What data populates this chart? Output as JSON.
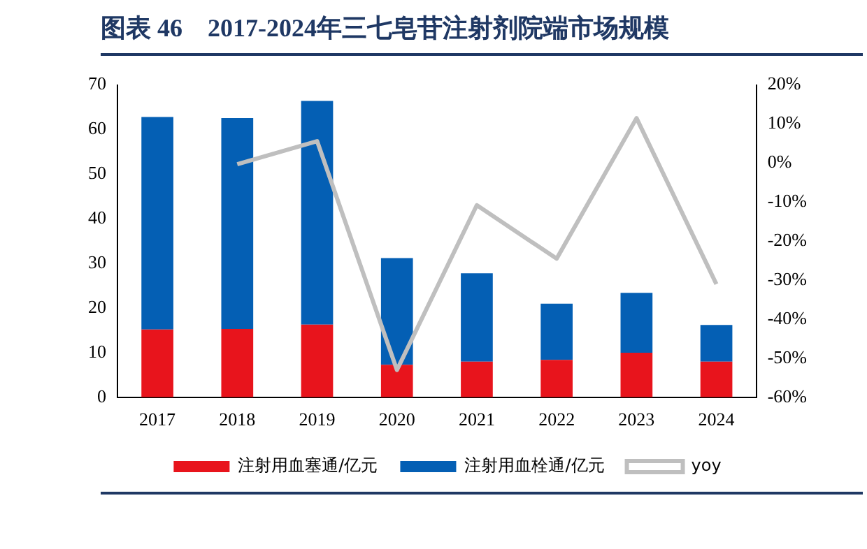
{
  "chart_data": {
    "type": "bar",
    "title": "图表 46　2017-2024年三七皂苷注射剂院端市场规模",
    "categories": [
      "2017",
      "2018",
      "2019",
      "2020",
      "2021",
      "2022",
      "2023",
      "2024"
    ],
    "stacked": true,
    "series": [
      {
        "name": "注射用血塞通/亿元",
        "color": "#e8141c",
        "values": [
          15.2,
          15.3,
          16.3,
          7.3,
          8.0,
          8.4,
          10.0,
          8.0
        ]
      },
      {
        "name": "注射用血栓通/亿元",
        "color": "#045fb4",
        "values": [
          47.6,
          47.3,
          50.1,
          23.9,
          19.8,
          12.6,
          13.4,
          8.2
        ]
      },
      {
        "name": "yoy",
        "type": "line",
        "axis": "y2",
        "color": "#bfbfbf",
        "values": [
          null,
          -0.3,
          5.6,
          -53,
          -10.8,
          -24.5,
          11.5,
          -31
        ]
      }
    ],
    "ylim": [
      0,
      70
    ],
    "yticks": [
      0,
      10,
      20,
      30,
      40,
      50,
      60,
      70
    ],
    "y2lim": [
      -60,
      20
    ],
    "y2ticks": [
      {
        "value": -60,
        "label": "-60%"
      },
      {
        "value": -50,
        "label": "-50%"
      },
      {
        "value": -40,
        "label": "-40%"
      },
      {
        "value": -30,
        "label": "-30%"
      },
      {
        "value": -20,
        "label": "-20%"
      },
      {
        "value": -10,
        "label": "-10%"
      },
      {
        "value": 0,
        "label": "0%"
      },
      {
        "value": 10,
        "label": "10%"
      },
      {
        "value": 20,
        "label": "20%"
      }
    ],
    "grid": false,
    "legend": "bottom",
    "marker": "none"
  }
}
